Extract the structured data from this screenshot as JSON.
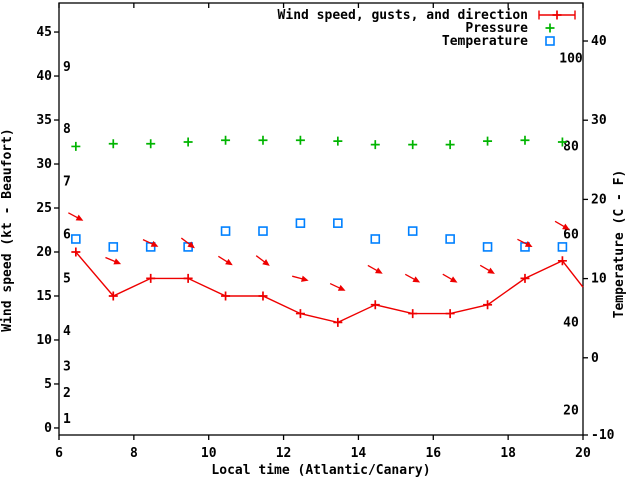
{
  "colors": {
    "background": "#ffffff",
    "axis": "#000000",
    "wind": "#ee0000",
    "pressure": "#00b400",
    "temperature": "#0080ff"
  },
  "chart_data": {
    "type": "line",
    "title": "",
    "xlabel": "Local time (Atlantic/Canary)",
    "ylabel_left": "Wind speed (kt - Beaufort)",
    "ylabel_right": "Temperature (C - F)",
    "grid": false,
    "xlim": [
      6,
      20
    ],
    "ylim_left_kt": [
      -0.8,
      48.3
    ],
    "ylim_right_celsius": [
      -9.75,
      44.8
    ],
    "x_ticks": [
      6,
      8,
      10,
      12,
      14,
      16,
      18,
      20
    ],
    "y_ticks_left_kt": [
      0,
      5,
      10,
      15,
      20,
      25,
      30,
      35,
      40,
      45
    ],
    "y_ticks_right_celsius": [
      -10,
      0,
      10,
      20,
      30,
      40
    ],
    "beaufort_scale_labels": [
      {
        "beaufort": "1",
        "kt": 1
      },
      {
        "beaufort": "2",
        "kt": 4
      },
      {
        "beaufort": "3",
        "kt": 7
      },
      {
        "beaufort": "4",
        "kt": 11
      },
      {
        "beaufort": "5",
        "kt": 17
      },
      {
        "beaufort": "6",
        "kt": 22
      },
      {
        "beaufort": "7",
        "kt": 28
      },
      {
        "beaufort": "8",
        "kt": 34
      },
      {
        "beaufort": "9",
        "kt": 41
      }
    ],
    "fahrenheit_inner_labels": [
      "20",
      "40",
      "60",
      "80",
      "100"
    ],
    "fahrenheit_inner_values": [
      20,
      40,
      60,
      80,
      100
    ],
    "x": [
      6.45,
      7.45,
      8.45,
      9.45,
      10.45,
      11.45,
      12.45,
      13.45,
      14.45,
      15.45,
      16.45,
      17.45,
      18.45,
      19.45
    ],
    "series": [
      {
        "name": "Wind speed, gusts, and direction",
        "style": "line_with_plus",
        "color_key": "wind",
        "axis": "left_kt",
        "values": [
          20,
          15,
          17,
          17,
          15,
          15,
          13,
          12,
          14,
          13,
          13,
          14,
          17,
          19
        ],
        "clip_end": {
          "x": 20,
          "value": 16
        }
      },
      {
        "name": "Wind gusts with direction arrows",
        "style": "direction_arrows",
        "color_key": "wind",
        "axis": "left_kt",
        "values": [
          24,
          19,
          21,
          21,
          19,
          19,
          17,
          16,
          18,
          17,
          17,
          18,
          21,
          23
        ],
        "arrow_angles_deg_below_east": [
          28,
          23,
          25,
          37,
          32,
          37,
          15,
          25,
          29,
          29,
          30,
          30,
          27,
          30
        ]
      },
      {
        "name": "Pressure",
        "style": "plus_points",
        "color_key": "pressure",
        "axis": "left_kt",
        "values": [
          32.0,
          32.3,
          32.3,
          32.5,
          32.7,
          32.7,
          32.7,
          32.6,
          32.2,
          32.2,
          32.2,
          32.6,
          32.7,
          32.5
        ]
      },
      {
        "name": "Temperature",
        "style": "open_square_points",
        "axis": "right_celsius",
        "color_key": "temperature",
        "values": [
          15,
          14,
          14,
          14,
          16,
          16,
          17,
          17,
          15,
          16,
          15,
          14,
          14,
          14
        ]
      }
    ],
    "legend": {
      "position": "top_right_inside",
      "entries": [
        {
          "label": "Wind speed, gusts, and direction",
          "sample": "errorbar_plus",
          "color_key": "wind"
        },
        {
          "label": "Pressure",
          "sample": "plus",
          "color_key": "pressure"
        },
        {
          "label": "Temperature",
          "sample": "open_square",
          "color_key": "temperature"
        }
      ]
    }
  }
}
